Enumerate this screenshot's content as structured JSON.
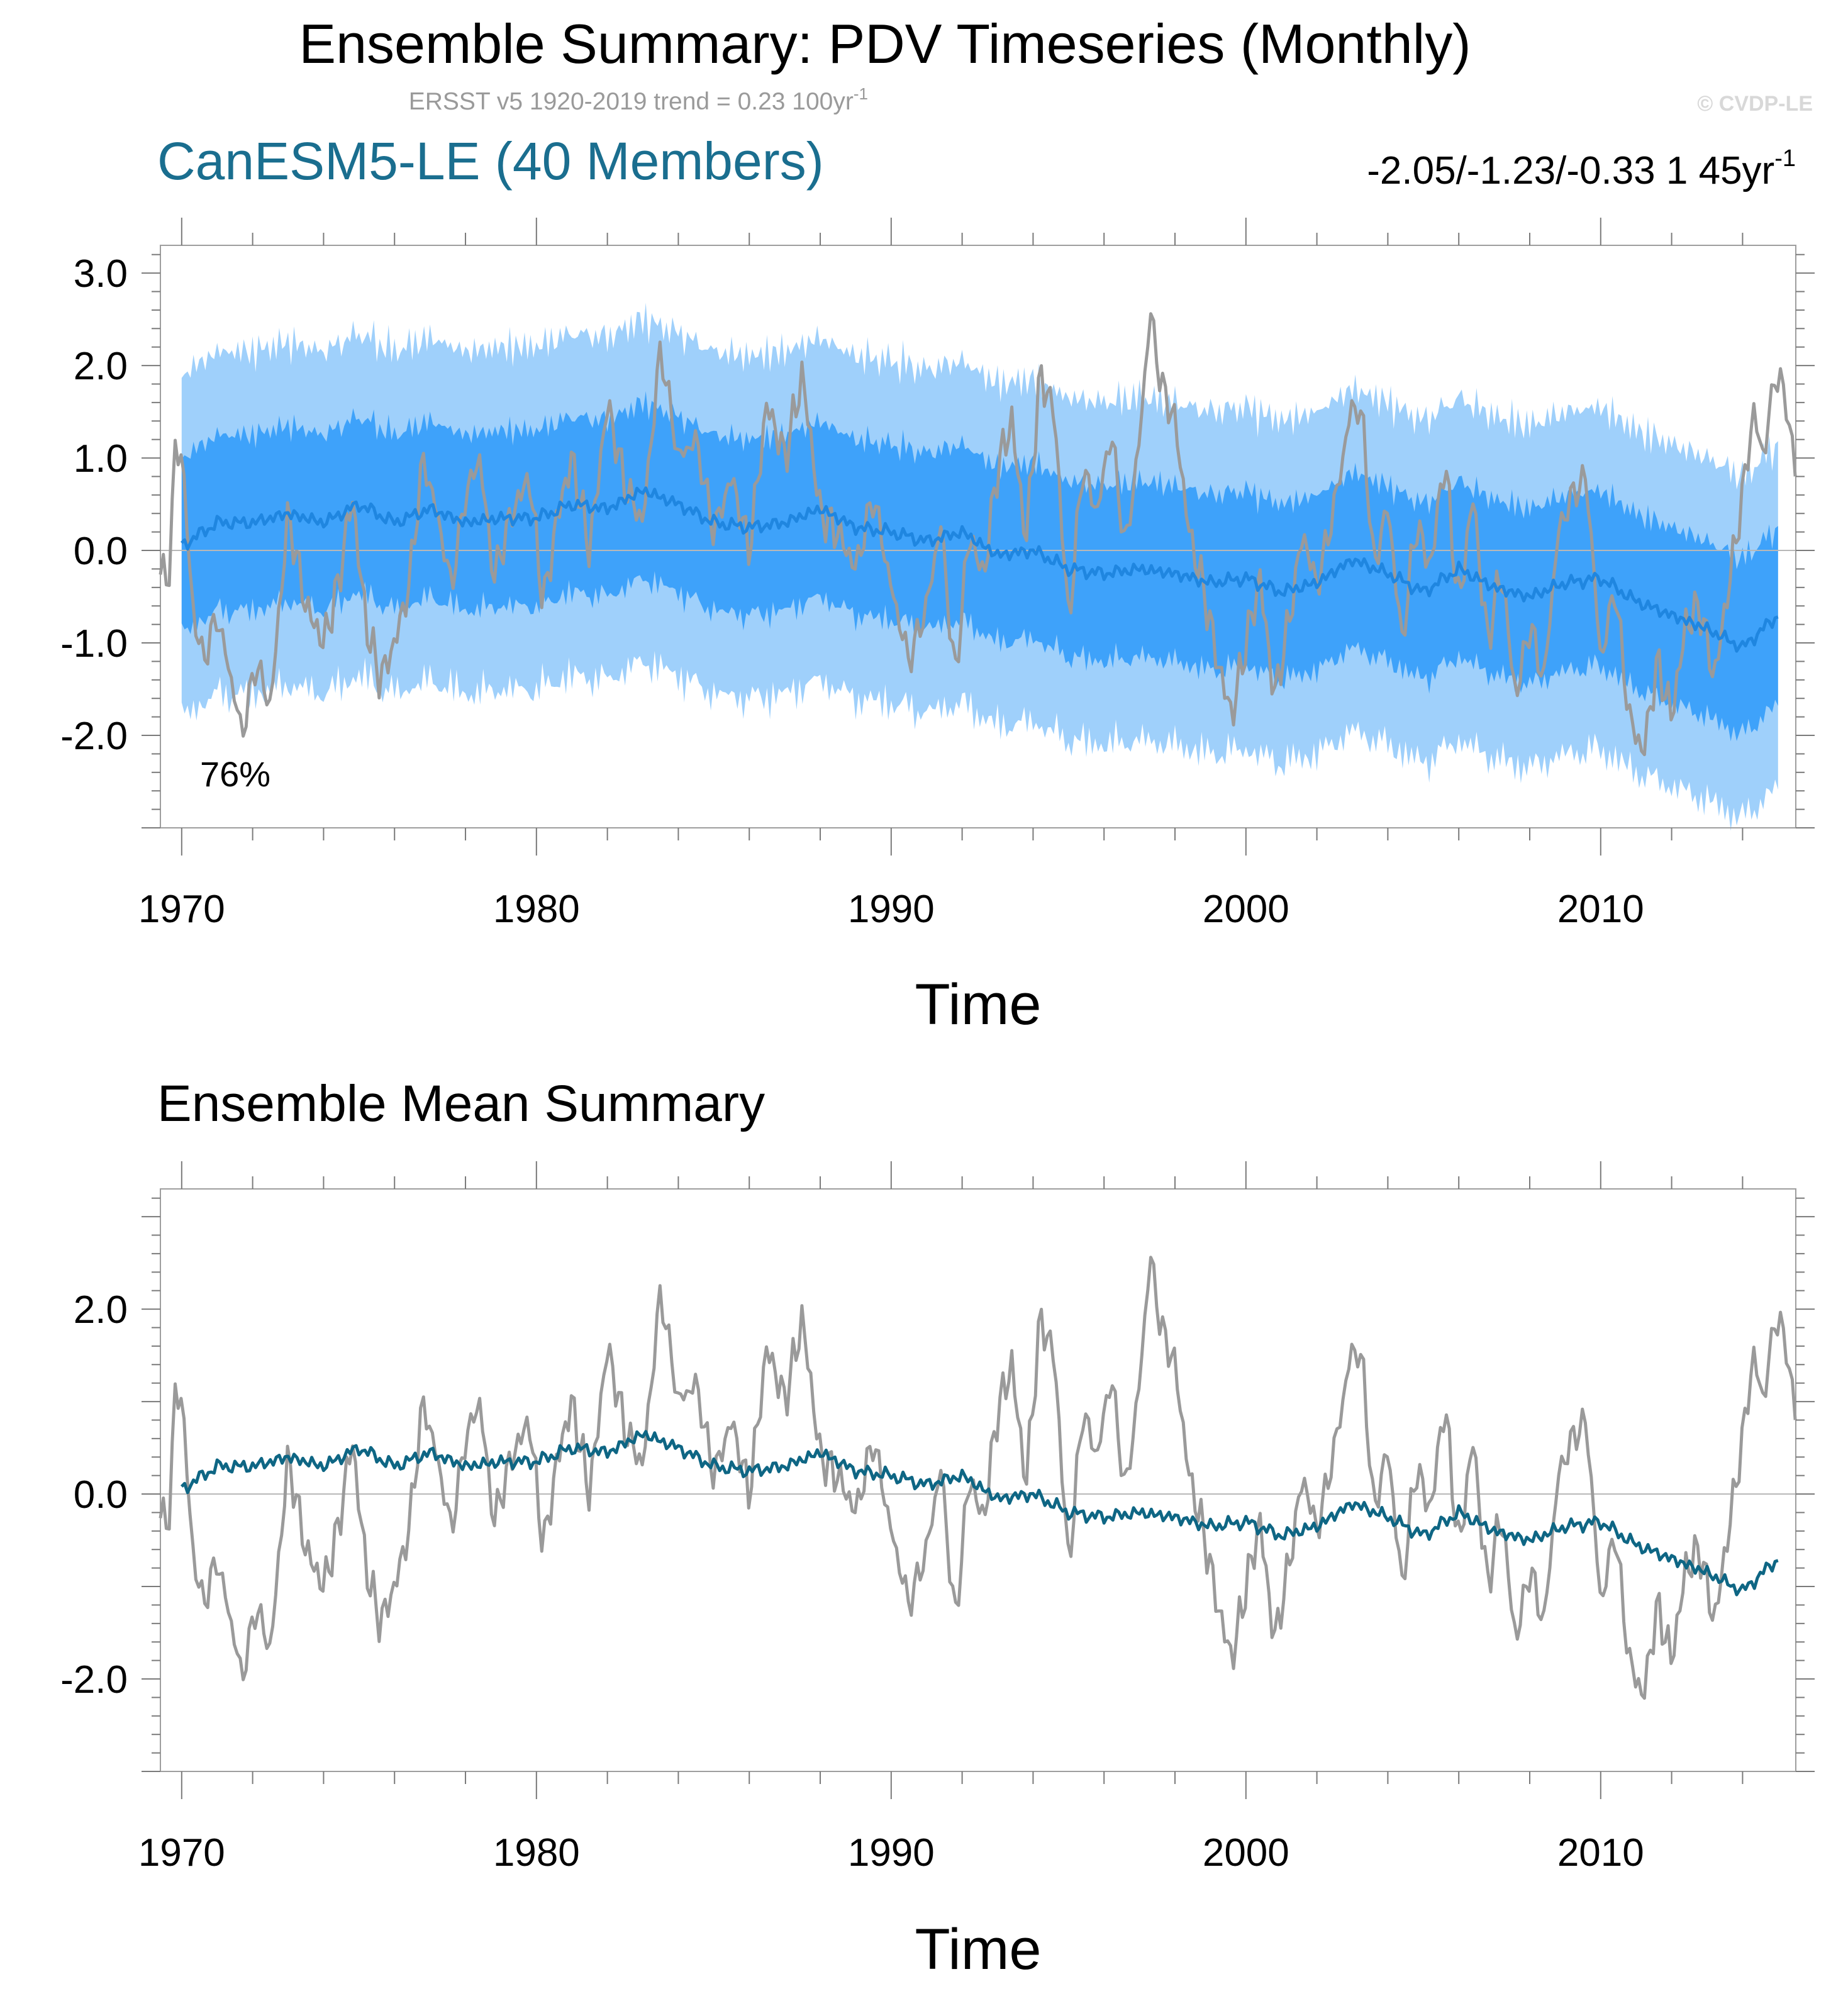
{
  "title": "Ensemble Summary: PDV Timeseries (Monthly)",
  "subtitle": "ERSST v5 1920-2019 trend = 0.23 100yr",
  "subtitle_sup": "-1",
  "copyright": "© CVDP-LE",
  "chart_data": [
    {
      "type": "line",
      "panel": "top",
      "model_label": "CanESM5-LE (40 Members)",
      "trend_label": "-2.05/-1.23/-0.33 1 45yr",
      "trend_sup": "-1",
      "annotation": "76%",
      "xlabel": "Time",
      "ylabel": "",
      "xlim": [
        1969.4,
        2015.5
      ],
      "ylim": [
        -3.0,
        3.3
      ],
      "x_ticks": [
        1970,
        1980,
        1990,
        2000,
        2010
      ],
      "x_tick_labels": [
        "1970",
        "1980",
        "1990",
        "2000",
        "2010"
      ],
      "y_ticks": [
        3.0,
        2.0,
        1.0,
        0.0,
        -1.0,
        -2.0
      ],
      "y_tick_labels": [
        "3.0",
        "2.0",
        "1.0",
        "0.0",
        "-1.0",
        "-2.0"
      ],
      "series": [
        {
          "name": "ensemble 2.5-97.5% range",
          "kind": "band",
          "color": "#9fd0fb",
          "width": 1.85
        },
        {
          "name": "ensemble 25-75% range",
          "kind": "band",
          "color": "#3ea2fa",
          "width": 0.95
        },
        {
          "name": "ensemble mean",
          "kind": "line",
          "color": "#1f86e0",
          "x": [
            1970.0,
            1971.0,
            1972.0,
            1973.0,
            1974.0,
            1975.0,
            1976.0,
            1977.0,
            1978.0,
            1979.0,
            1980.0,
            1981.0,
            1982.0,
            1983.0,
            1984.0,
            1985.0,
            1986.0,
            1987.0,
            1988.0,
            1989.0,
            1990.0,
            1991.0,
            1992.0,
            1993.0,
            1994.0,
            1995.0,
            1996.0,
            1997.0,
            1998.0,
            1999.0,
            2000.0,
            2001.0,
            2002.0,
            2003.0,
            2004.0,
            2005.0,
            2006.0,
            2007.0,
            2008.0,
            2009.0,
            2010.0,
            2011.0,
            2012.0,
            2013.0,
            2014.0,
            2015.0
          ],
          "y": [
            0.05,
            0.3,
            0.3,
            0.4,
            0.3,
            0.5,
            0.3,
            0.45,
            0.3,
            0.35,
            0.35,
            0.5,
            0.45,
            0.65,
            0.5,
            0.3,
            0.25,
            0.3,
            0.45,
            0.25,
            0.2,
            0.1,
            0.2,
            -0.05,
            0.0,
            -0.2,
            -0.25,
            -0.2,
            -0.25,
            -0.35,
            -0.3,
            -0.45,
            -0.35,
            -0.1,
            -0.25,
            -0.45,
            -0.2,
            -0.4,
            -0.5,
            -0.35,
            -0.3,
            -0.55,
            -0.7,
            -0.85,
            -1.05,
            -0.7
          ]
        },
        {
          "name": "ERSST v5 observations",
          "kind": "line",
          "color": "#9a9a9a",
          "x": [
            1969.4,
            1969.6,
            1969.8,
            1970.0,
            1970.3,
            1970.6,
            1971.0,
            1971.4,
            1971.7,
            1972.1,
            1972.5,
            1973.0,
            1973.5,
            1974.0,
            1974.4,
            1974.8,
            1975.2,
            1975.6,
            1976.0,
            1976.4,
            1976.8,
            1977.2,
            1977.6,
            1978.0,
            1978.4,
            1978.8,
            1979.3,
            1979.8,
            1980.2,
            1980.6,
            1981.0,
            1981.5,
            1982.0,
            1982.5,
            1983.0,
            1983.5,
            1984.0,
            1984.5,
            1985.0,
            1985.5,
            1986.0,
            1986.5,
            1987.0,
            1987.5,
            1988.0,
            1988.5,
            1989.0,
            1989.5,
            1990.0,
            1990.5,
            1991.0,
            1991.4,
            1991.8,
            1992.2,
            1992.6,
            1993.0,
            1993.4,
            1993.8,
            1994.2,
            1994.6,
            1995.0,
            1995.4,
            1995.8,
            1996.2,
            1996.6,
            1997.0,
            1997.3,
            1997.6,
            1998.0,
            1998.4,
            1998.8,
            1999.2,
            1999.6,
            2000.0,
            2000.4,
            2000.8,
            2001.2,
            2001.6,
            2002.0,
            2002.5,
            2003.0,
            2003.3,
            2003.6,
            2004.0,
            2004.4,
            2004.8,
            2005.2,
            2005.6,
            2006.0,
            2006.4,
            2006.8,
            2007.2,
            2007.6,
            2008.0,
            2008.4,
            2008.8,
            2009.2,
            2009.6,
            2010.0,
            2010.4,
            2010.8,
            2011.2,
            2011.6,
            2012.0,
            2012.4,
            2012.8,
            2013.2,
            2013.6,
            2014.0,
            2014.3,
            2014.6,
            2014.9,
            2015.2,
            2015.5
          ],
          "y": [
            -0.1,
            -0.5,
            1.0,
            1.1,
            -0.6,
            -1.2,
            -0.7,
            -1.4,
            -2.0,
            -1.2,
            -1.7,
            0.4,
            -0.6,
            -1.0,
            -0.4,
            0.6,
            -0.8,
            -1.4,
            -1.0,
            -0.4,
            1.0,
            0.4,
            -0.4,
            0.6,
            1.0,
            -0.3,
            0.4,
            0.8,
            -0.6,
            0.4,
            1.0,
            0.0,
            1.6,
            0.7,
            0.3,
            2.2,
            1.0,
            1.2,
            0.2,
            0.8,
            0.0,
            1.6,
            1.0,
            1.9,
            0.4,
            0.2,
            -0.2,
            0.6,
            -0.4,
            -1.2,
            -0.6,
            0.3,
            -1.4,
            0.2,
            -0.3,
            0.9,
            1.4,
            0.1,
            1.9,
            1.5,
            -0.8,
            0.9,
            0.4,
            1.3,
            0.0,
            1.2,
            2.6,
            1.8,
            1.4,
            0.2,
            -0.4,
            -1.2,
            -1.8,
            -1.0,
            -0.3,
            -1.6,
            -0.8,
            0.2,
            -0.4,
            0.5,
            1.6,
            1.4,
            -0.2,
            0.5,
            -1.0,
            0.3,
            -0.2,
            1.0,
            -0.6,
            0.6,
            -1.0,
            -0.2,
            -1.6,
            -0.8,
            -1.4,
            0.2,
            0.6,
            0.8,
            -1.2,
            -0.4,
            -1.8,
            -2.2,
            -1.2,
            -1.8,
            -0.8,
            -0.6,
            -1.4,
            -0.4,
            0.6,
            1.5,
            1.0,
            1.9,
            1.7,
            0.8
          ]
        }
      ]
    },
    {
      "type": "line",
      "panel": "bottom",
      "title": "Ensemble Mean Summary",
      "xlabel": "Time",
      "ylabel": "",
      "xlim": [
        1969.4,
        2015.5
      ],
      "ylim": [
        -3.0,
        3.3
      ],
      "x_ticks": [
        1970,
        1980,
        1990,
        2000,
        2010
      ],
      "x_tick_labels": [
        "1970",
        "1980",
        "1990",
        "2000",
        "2010"
      ],
      "y_ticks": [
        2.0,
        0.0,
        -2.0
      ],
      "y_tick_labels": [
        "2.0",
        "0.0",
        "-2.0"
      ],
      "series": [
        {
          "name": "ERSST v5 observations",
          "color": "#9a9a9a",
          "ref": "same as top panel"
        },
        {
          "name": "ensemble mean",
          "color": "#0e6684",
          "ref": "same as top panel"
        }
      ]
    }
  ]
}
